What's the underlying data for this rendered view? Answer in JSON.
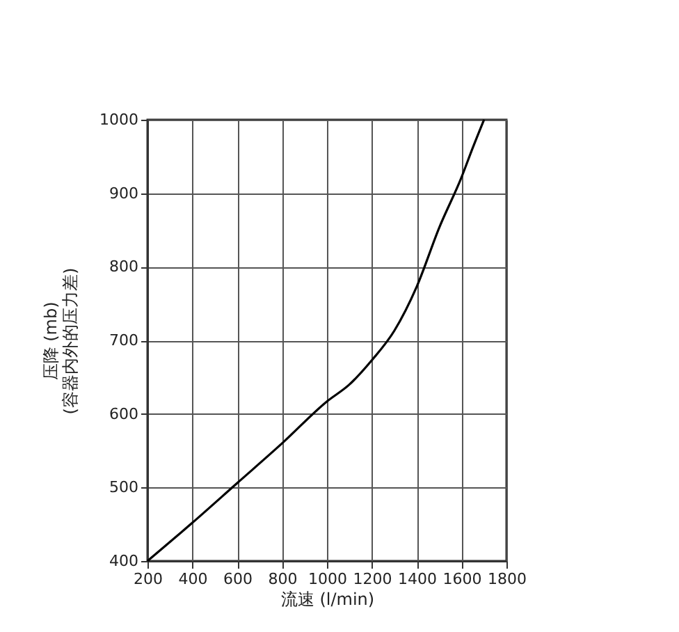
{
  "chart_data": {
    "type": "line",
    "xlabel": "流速 (l/min)",
    "ylabel": "压降 (mb)\n(容器内外的压力差)",
    "x": [
      200,
      400,
      600,
      800,
      1000,
      1100,
      1200,
      1300,
      1400,
      1500,
      1600,
      1650,
      1700
    ],
    "series": [
      {
        "color": "#000000",
        "values": [
          400,
          452,
          506,
          560,
          617,
          640,
          673,
          713,
          773,
          853,
          922,
          962,
          1000
        ]
      }
    ],
    "xlim": [
      200,
      1800
    ],
    "xticks": [
      200,
      400,
      600,
      800,
      1000,
      1200,
      1400,
      1600,
      1800
    ],
    "ylim": [
      400,
      1000
    ],
    "yticks": [
      400,
      500,
      600,
      700,
      800,
      900,
      1000
    ],
    "grid": true,
    "legend": false,
    "marker": "none",
    "line_style": "solid"
  }
}
